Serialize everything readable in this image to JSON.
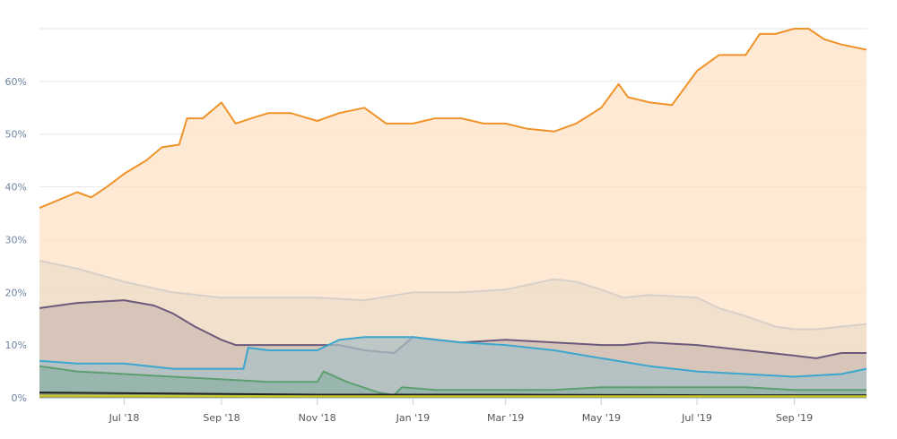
{
  "chart_data": {
    "type": "area",
    "title": "",
    "xlabel": "",
    "ylabel": "",
    "ylim": [
      0,
      70
    ],
    "xlim": [
      "2018-05-08",
      "2019-10-17"
    ],
    "grid": true,
    "y_ticks": [
      "0%",
      "10%",
      "20%",
      "30%",
      "40%",
      "50%",
      "60%"
    ],
    "y_tick_values": [
      0,
      10,
      20,
      30,
      40,
      50,
      60
    ],
    "x_ticks": [
      "Jul '18",
      "Sep '18",
      "Nov '18",
      "Jan '19",
      "Mar '19",
      "May '19",
      "Jul '19",
      "Sep '19"
    ],
    "x_tick_dates": [
      "2018-07-01",
      "2018-09-01",
      "2018-11-01",
      "2019-01-01",
      "2019-03-01",
      "2019-05-01",
      "2019-07-01",
      "2019-09-01"
    ],
    "series": [
      {
        "color": "#f0922a",
        "fill": "#fde3c6",
        "points": [
          [
            "2018-05-08",
            36
          ],
          [
            "2018-05-20",
            37.5
          ],
          [
            "2018-06-01",
            39
          ],
          [
            "2018-06-10",
            38
          ],
          [
            "2018-06-20",
            40
          ],
          [
            "2018-07-01",
            42.5
          ],
          [
            "2018-07-15",
            45
          ],
          [
            "2018-07-25",
            47.5
          ],
          [
            "2018-08-05",
            48
          ],
          [
            "2018-08-10",
            53
          ],
          [
            "2018-08-20",
            53
          ],
          [
            "2018-09-01",
            56
          ],
          [
            "2018-09-10",
            52
          ],
          [
            "2018-09-20",
            53
          ],
          [
            "2018-10-01",
            54
          ],
          [
            "2018-10-15",
            54
          ],
          [
            "2018-11-01",
            52.5
          ],
          [
            "2018-11-15",
            54
          ],
          [
            "2018-12-01",
            55
          ],
          [
            "2018-12-15",
            52
          ],
          [
            "2019-01-01",
            52
          ],
          [
            "2019-01-15",
            53
          ],
          [
            "2019-02-01",
            53
          ],
          [
            "2019-02-15",
            52
          ],
          [
            "2019-03-01",
            52
          ],
          [
            "2019-03-15",
            51
          ],
          [
            "2019-04-01",
            50.5
          ],
          [
            "2019-04-15",
            52
          ],
          [
            "2019-05-01",
            55
          ],
          [
            "2019-05-12",
            59.5
          ],
          [
            "2019-05-18",
            57
          ],
          [
            "2019-06-01",
            56
          ],
          [
            "2019-06-15",
            55.5
          ],
          [
            "2019-07-01",
            62
          ],
          [
            "2019-07-15",
            65
          ],
          [
            "2019-08-01",
            65
          ],
          [
            "2019-08-10",
            69
          ],
          [
            "2019-08-20",
            69
          ],
          [
            "2019-09-01",
            70
          ],
          [
            "2019-09-10",
            70
          ],
          [
            "2019-09-20",
            68
          ],
          [
            "2019-10-01",
            67
          ],
          [
            "2019-10-17",
            66
          ]
        ]
      },
      {
        "color": "#d8d0c8",
        "fill": "#ecdcca",
        "points": [
          [
            "2018-05-08",
            26
          ],
          [
            "2018-06-01",
            24.5
          ],
          [
            "2018-07-01",
            22
          ],
          [
            "2018-08-01",
            20
          ],
          [
            "2018-09-01",
            19
          ],
          [
            "2018-10-01",
            19
          ],
          [
            "2018-11-01",
            19
          ],
          [
            "2018-12-01",
            18.5
          ],
          [
            "2019-01-01",
            20
          ],
          [
            "2019-02-01",
            20
          ],
          [
            "2019-03-01",
            20.5
          ],
          [
            "2019-04-01",
            22.5
          ],
          [
            "2019-04-15",
            22
          ],
          [
            "2019-05-01",
            20.5
          ],
          [
            "2019-05-15",
            19
          ],
          [
            "2019-06-01",
            19.5
          ],
          [
            "2019-07-01",
            19
          ],
          [
            "2019-07-15",
            17
          ],
          [
            "2019-08-01",
            15.5
          ],
          [
            "2019-08-20",
            13.5
          ],
          [
            "2019-09-01",
            13
          ],
          [
            "2019-09-15",
            13
          ],
          [
            "2019-10-17",
            14
          ]
        ]
      },
      {
        "color": "#6b5a7c",
        "fill": "#cfbcb4",
        "points": [
          [
            "2018-05-08",
            17
          ],
          [
            "2018-06-01",
            18
          ],
          [
            "2018-07-01",
            18.5
          ],
          [
            "2018-07-20",
            17.5
          ],
          [
            "2018-08-01",
            16
          ],
          [
            "2018-08-15",
            13.5
          ],
          [
            "2018-09-01",
            11
          ],
          [
            "2018-09-10",
            10
          ],
          [
            "2018-10-01",
            10
          ],
          [
            "2018-11-01",
            10
          ],
          [
            "2018-11-15",
            10
          ],
          [
            "2018-12-01",
            9
          ],
          [
            "2018-12-20",
            8.5
          ],
          [
            "2019-01-01",
            11.5
          ],
          [
            "2019-01-15",
            11
          ],
          [
            "2019-02-01",
            10.5
          ],
          [
            "2019-03-01",
            11
          ],
          [
            "2019-04-01",
            10.5
          ],
          [
            "2019-05-01",
            10
          ],
          [
            "2019-05-15",
            10
          ],
          [
            "2019-06-01",
            10.5
          ],
          [
            "2019-07-01",
            10
          ],
          [
            "2019-08-01",
            9
          ],
          [
            "2019-09-01",
            8
          ],
          [
            "2019-09-15",
            7.5
          ],
          [
            "2019-10-01",
            8.5
          ],
          [
            "2019-10-17",
            8.5
          ]
        ]
      },
      {
        "color": "#3ba7cf",
        "fill": "#a9bfc4",
        "points": [
          [
            "2018-05-08",
            7
          ],
          [
            "2018-06-01",
            6.5
          ],
          [
            "2018-07-01",
            6.5
          ],
          [
            "2018-08-01",
            5.5
          ],
          [
            "2018-09-01",
            5.5
          ],
          [
            "2018-09-15",
            5.5
          ],
          [
            "2018-09-18",
            9.5
          ],
          [
            "2018-10-01",
            9
          ],
          [
            "2018-11-01",
            9
          ],
          [
            "2018-11-15",
            11
          ],
          [
            "2018-12-01",
            11.5
          ],
          [
            "2018-12-15",
            11.5
          ],
          [
            "2019-01-01",
            11.5
          ],
          [
            "2019-02-01",
            10.5
          ],
          [
            "2019-03-01",
            10
          ],
          [
            "2019-04-01",
            9
          ],
          [
            "2019-05-01",
            7.5
          ],
          [
            "2019-06-01",
            6
          ],
          [
            "2019-07-01",
            5
          ],
          [
            "2019-08-01",
            4.5
          ],
          [
            "2019-09-01",
            4
          ],
          [
            "2019-10-01",
            4.5
          ],
          [
            "2019-10-17",
            5.5
          ]
        ]
      },
      {
        "color": "#5e9f72",
        "fill": "#8fb2a6",
        "points": [
          [
            "2018-05-08",
            6
          ],
          [
            "2018-06-01",
            5
          ],
          [
            "2018-07-01",
            4.5
          ],
          [
            "2018-08-01",
            4
          ],
          [
            "2018-09-01",
            3.5
          ],
          [
            "2018-10-01",
            3
          ],
          [
            "2018-11-01",
            3
          ],
          [
            "2018-11-05",
            5
          ],
          [
            "2018-11-20",
            3
          ],
          [
            "2018-12-10",
            1
          ],
          [
            "2018-12-20",
            0.5
          ],
          [
            "2018-12-25",
            2
          ],
          [
            "2019-01-15",
            1.5
          ],
          [
            "2019-03-01",
            1.5
          ],
          [
            "2019-04-01",
            1.5
          ],
          [
            "2019-05-01",
            2
          ],
          [
            "2019-06-01",
            2
          ],
          [
            "2019-07-01",
            2
          ],
          [
            "2019-08-01",
            2
          ],
          [
            "2019-09-01",
            1.5
          ],
          [
            "2019-10-17",
            1.5
          ]
        ]
      },
      {
        "color": "#222222",
        "fill": "#7d8a6a",
        "points": [
          [
            "2018-05-08",
            1
          ],
          [
            "2018-08-01",
            0.8
          ],
          [
            "2018-11-01",
            0.6
          ],
          [
            "2019-03-01",
            0.6
          ],
          [
            "2019-07-01",
            0.5
          ],
          [
            "2019-10-17",
            0.5
          ]
        ]
      },
      {
        "color": "#c9c82a",
        "fill": "#b3a84a",
        "points": [
          [
            "2018-05-08",
            0.4
          ],
          [
            "2018-10-01",
            0.3
          ],
          [
            "2019-05-01",
            0.3
          ],
          [
            "2019-10-17",
            0.3
          ]
        ]
      }
    ]
  }
}
